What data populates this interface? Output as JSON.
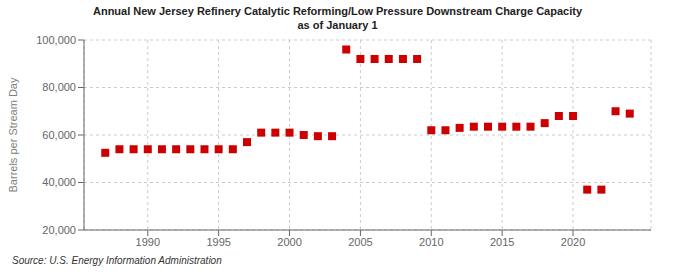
{
  "chart_data": {
    "type": "scatter",
    "title": "Annual New Jersey Refinery Catalytic Reforming/Low Pressure Downstream Charge Capacity",
    "subtitle": "as of January 1",
    "y_label": "Barrels per Stream Day",
    "annotations": [
      "Source: U.S. Energy Information Administration"
    ],
    "x": [
      1987,
      1988,
      1989,
      1990,
      1991,
      1992,
      1993,
      1994,
      1995,
      1996,
      1997,
      1998,
      1999,
      2000,
      2001,
      2002,
      2003,
      2004,
      2005,
      2006,
      2007,
      2008,
      2009,
      2010,
      2011,
      2012,
      2013,
      2014,
      2015,
      2016,
      2017,
      2018,
      2019,
      2020,
      2021,
      2022,
      2023,
      2024
    ],
    "values": [
      52500,
      54000,
      54000,
      54000,
      54000,
      54000,
      54000,
      54000,
      54000,
      54000,
      57000,
      61000,
      61000,
      61000,
      60000,
      59500,
      59500,
      96000,
      92000,
      92000,
      92000,
      92000,
      92000,
      62000,
      62000,
      63000,
      63500,
      63500,
      63500,
      63500,
      63500,
      65000,
      68000,
      68000,
      37000,
      37000,
      70000,
      69000
    ],
    "color": "#cc0000",
    "marker": "square",
    "xlim": [
      1985.5,
      2025.5
    ],
    "xticks": [
      1990,
      1995,
      2000,
      2005,
      2010,
      2015,
      2020
    ],
    "ylim": [
      20000,
      100000
    ],
    "yticks": [
      {
        "value": 20000,
        "label": "20,000"
      },
      {
        "value": 40000,
        "label": "40,000"
      },
      {
        "value": 60000,
        "label": "60,000"
      },
      {
        "value": 80000,
        "label": "80,000"
      },
      {
        "value": 100000,
        "label": "100,000"
      }
    ],
    "grid": true
  }
}
